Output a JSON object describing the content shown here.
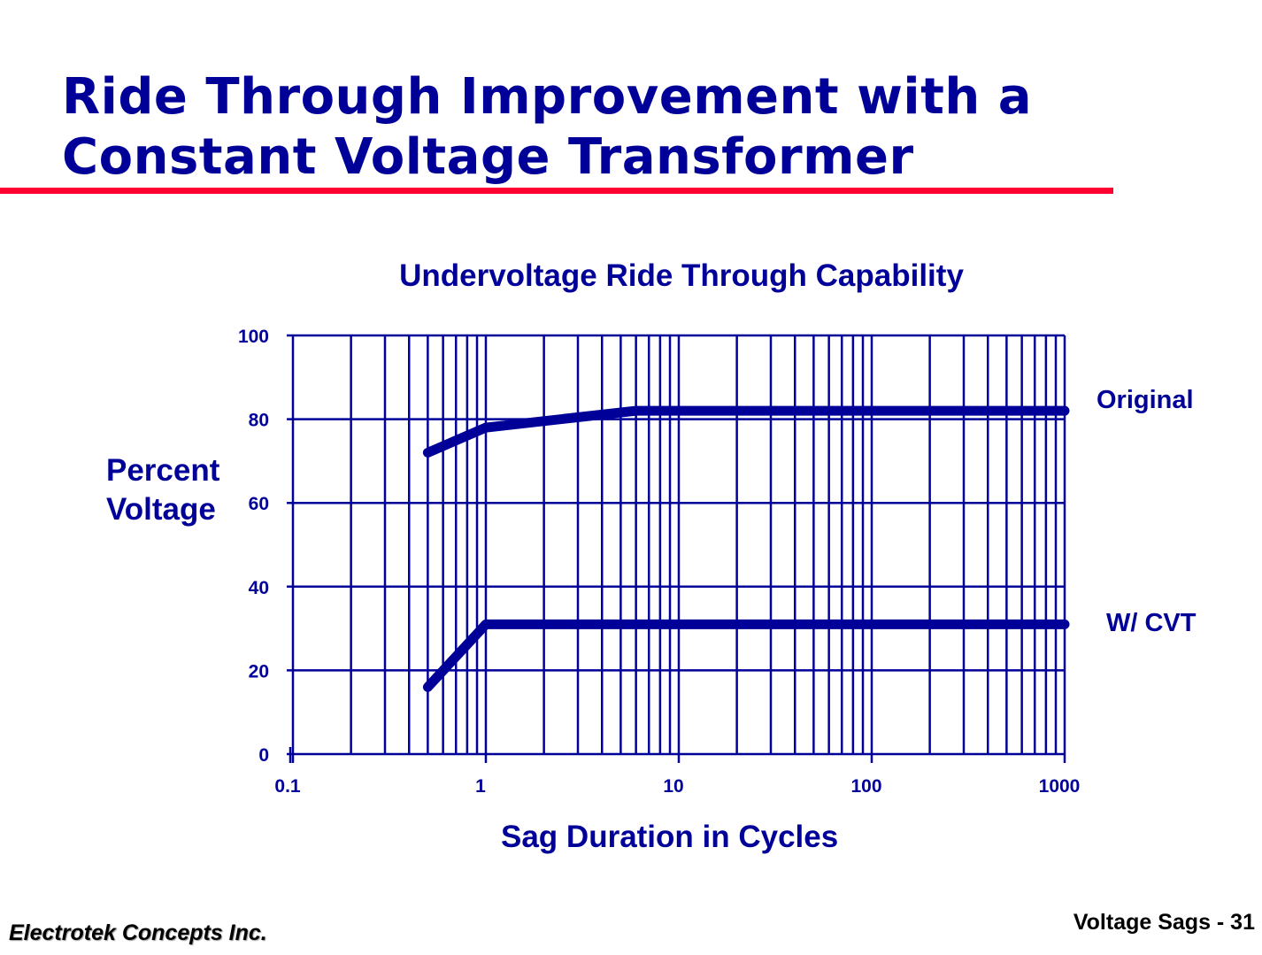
{
  "slide": {
    "title_line1": "Ride Through Improvement with a",
    "title_line2": "Constant Voltage Transformer",
    "footer_left": "Electrotek Concepts Inc.",
    "footer_right": "Voltage Sags - 31",
    "colors": {
      "title": "#000099",
      "rule": "#ff0033",
      "chart": "#000099"
    }
  },
  "chart_data": {
    "type": "line",
    "title": "Undervoltage Ride Through Capability",
    "xlabel": "Sag Duration in Cycles",
    "ylabel": "Percent Voltage",
    "ylabel_line1": "Percent",
    "ylabel_line2": "Voltage",
    "xscale": "log",
    "xlim": [
      0.1,
      1000
    ],
    "ylim": [
      0,
      100
    ],
    "xticks": [
      "0.1",
      "1",
      "10",
      "100",
      "1000"
    ],
    "yticks": [
      "0",
      "20",
      "40",
      "60",
      "80",
      "100"
    ],
    "grid": true,
    "legend_position": "right, inline labels",
    "series": [
      {
        "name": "Original",
        "x": [
          0.5,
          1,
          6,
          1000
        ],
        "y": [
          72,
          78,
          82,
          82
        ]
      },
      {
        "name": "W/ CVT",
        "x": [
          0.5,
          1,
          1000
        ],
        "y": [
          16,
          31,
          31
        ]
      }
    ]
  }
}
